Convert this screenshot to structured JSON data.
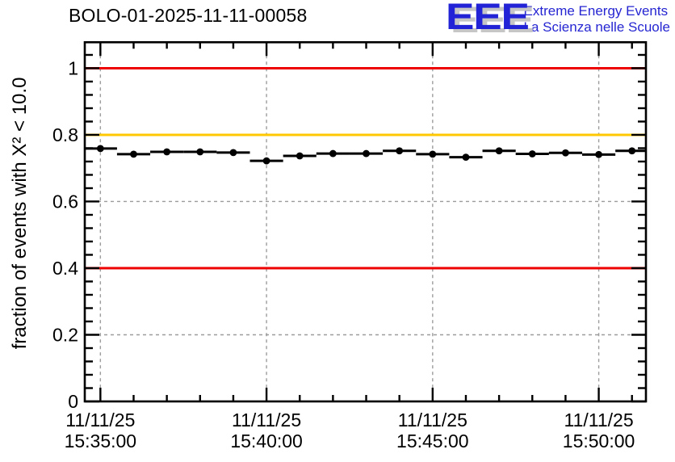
{
  "logo": {
    "acronym": "EEE",
    "line1": "Extreme Energy Events",
    "line2": "La Scienza nelle Scuole",
    "text_color": "#2525d2",
    "shadow_color": "#c6c6c6"
  },
  "chart_data": {
    "type": "scatter",
    "title": "BOLO-01-2025-11-11-00058",
    "xlabel": "",
    "ylabel": "fraction of events with X² < 10.0",
    "date": "11/11/25",
    "ylim": [
      0,
      1.078
    ],
    "yticks": {
      "values": [
        0,
        0.2,
        0.4,
        0.6,
        0.8,
        1
      ],
      "labels": [
        "0",
        "0.2",
        "0.4",
        "0.6",
        "0.8",
        "1"
      ],
      "minor_step": 0.04
    },
    "xlim_minutes": [
      -0.47,
      16.42
    ],
    "x_minor_step_minutes": 1,
    "xticks": [
      {
        "minute": 0,
        "date": "11/11/25",
        "time": "15:35:00"
      },
      {
        "minute": 5,
        "date": "11/11/25",
        "time": "15:40:00"
      },
      {
        "minute": 10,
        "date": "11/11/25",
        "time": "15:45:00"
      },
      {
        "minute": 15,
        "date": "11/11/25",
        "time": "15:50:00"
      }
    ],
    "grid": {
      "show": true,
      "color": "#9c9c9c"
    },
    "thresholds": [
      {
        "value": 1.0,
        "color": "#ee0000"
      },
      {
        "value": 0.8,
        "color": "#ffc800"
      },
      {
        "value": 0.4,
        "color": "#ee0000"
      }
    ],
    "series": [
      {
        "name": "fraction of events with chi2 < 10",
        "marker": "circle",
        "color": "#000000",
        "bin_width_minutes": 1,
        "points": [
          {
            "minute": 0,
            "value": 0.759
          },
          {
            "minute": 1,
            "value": 0.742
          },
          {
            "minute": 2,
            "value": 0.749
          },
          {
            "minute": 3,
            "value": 0.749
          },
          {
            "minute": 4,
            "value": 0.747
          },
          {
            "minute": 5,
            "value": 0.722
          },
          {
            "minute": 6,
            "value": 0.737
          },
          {
            "minute": 7,
            "value": 0.744
          },
          {
            "minute": 8,
            "value": 0.744
          },
          {
            "minute": 9,
            "value": 0.752
          },
          {
            "minute": 10,
            "value": 0.742
          },
          {
            "minute": 11,
            "value": 0.733
          },
          {
            "minute": 12,
            "value": 0.752
          },
          {
            "minute": 13,
            "value": 0.743
          },
          {
            "minute": 14,
            "value": 0.746
          },
          {
            "minute": 15,
            "value": 0.741
          },
          {
            "minute": 16,
            "value": 0.752
          }
        ]
      }
    ]
  }
}
